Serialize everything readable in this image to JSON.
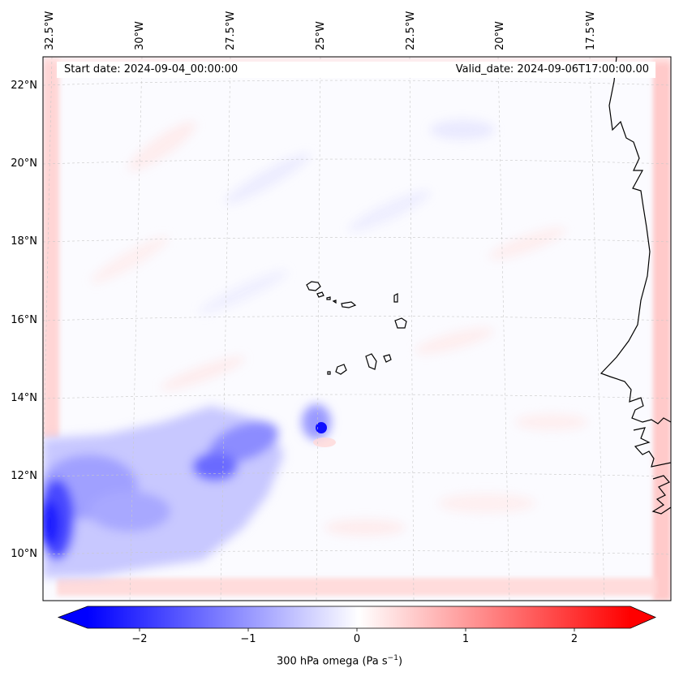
{
  "map": {
    "lon_labels": [
      "32.5°W",
      "30°W",
      "27.5°W",
      "25°W",
      "22.5°W",
      "20°W",
      "17.5°W"
    ],
    "lat_labels": [
      "22°N",
      "20°N",
      "18°N",
      "16°N",
      "14°N",
      "12°N",
      "10°N"
    ],
    "start_date": "Start date: 2024-09-04_00:00:00",
    "valid_date": "Valid_date: 2024-09-06T17:00:00.00"
  },
  "colorbar": {
    "ticks": [
      "−2",
      "−1",
      "0",
      "1",
      "2"
    ],
    "label": "300 hPa omega (Pa s",
    "label_sup": "−1",
    "label_end": ")",
    "range": [
      -2.6,
      2.6
    ],
    "colors": {
      "negative": "#0000ff",
      "zero": "#ffffff",
      "positive": "#ff0000"
    }
  }
}
